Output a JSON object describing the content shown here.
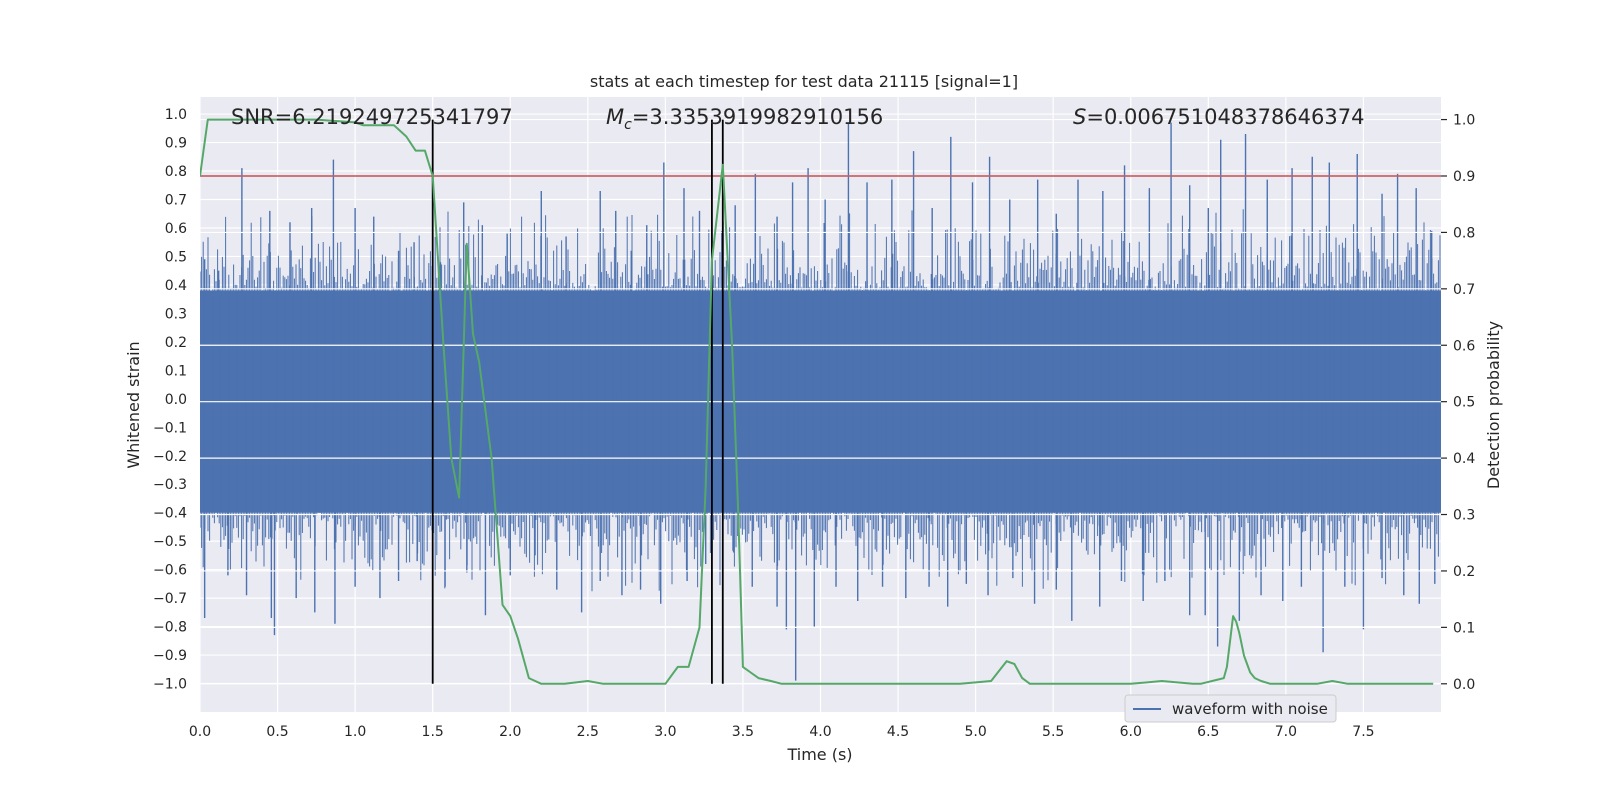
{
  "chart_data": {
    "type": "line",
    "title": "stats at each timestep for test data 21115 [signal=1]",
    "xlabel": "Time (s)",
    "ylabel_left": "Whitened strain",
    "ylabel_right": "Detection probability",
    "xlim": [
      0,
      8
    ],
    "ylim_left": [
      -1.1,
      1.06
    ],
    "ylim_right": [
      -0.05,
      1.04
    ],
    "grid": true,
    "x_ticks": [
      "0.0",
      "0.5",
      "1.0",
      "1.5",
      "2.0",
      "2.5",
      "3.0",
      "3.5",
      "4.0",
      "4.5",
      "5.0",
      "5.5",
      "6.0",
      "6.5",
      "7.0",
      "7.5"
    ],
    "y_left_ticks": [
      "1.0",
      "0.9",
      "0.8",
      "0.7",
      "0.6",
      "0.5",
      "0.4",
      "0.3",
      "0.2",
      "0.1",
      "0.0",
      "-0.1",
      "-0.2",
      "-0.3",
      "-0.4",
      "-0.5",
      "-0.6",
      "-0.7",
      "-0.8",
      "-0.9",
      "-1.0"
    ],
    "y_right_ticks": [
      "1.0",
      "0.9",
      "0.8",
      "0.7",
      "0.6",
      "0.5",
      "0.4",
      "0.3",
      "0.2",
      "0.1",
      "0.0"
    ],
    "annotations": {
      "snr": "SNR=6.219249725341797",
      "mc_symbol": "M",
      "mc_sub": "c",
      "mc_value": "=3.3353919982910156",
      "s_symbol": "S",
      "s_value": "=0.006751048378646374"
    },
    "legend": {
      "label": "waveform with noise",
      "position": "lower-right"
    },
    "threshold": {
      "value": 0.9,
      "axis": "right",
      "color": "#c44e52"
    },
    "vertical_lines": [
      1.5,
      3.3,
      3.37
    ],
    "waveform": {
      "name": "waveform with noise",
      "color": "#4c72b0",
      "core_band": [
        -0.4,
        0.38
      ],
      "spikes_up": [
        [
          0.03,
          0.49
        ],
        [
          0.12,
          0.45
        ],
        [
          0.27,
          0.81
        ],
        [
          0.45,
          0.66
        ],
        [
          0.58,
          0.62
        ],
        [
          0.72,
          0.67
        ],
        [
          0.86,
          0.84
        ],
        [
          1.0,
          0.67
        ],
        [
          1.12,
          0.64
        ],
        [
          1.28,
          0.52
        ],
        [
          1.38,
          0.55
        ],
        [
          1.55,
          0.48
        ],
        [
          1.7,
          0.69
        ],
        [
          1.82,
          0.61
        ],
        [
          1.98,
          0.58
        ],
        [
          2.2,
          0.73
        ],
        [
          2.36,
          0.57
        ],
        [
          2.58,
          0.73
        ],
        [
          2.68,
          0.66
        ],
        [
          2.78,
          0.52
        ],
        [
          2.88,
          0.61
        ],
        [
          2.99,
          0.83
        ],
        [
          3.12,
          0.74
        ],
        [
          3.22,
          0.66
        ],
        [
          3.45,
          0.68
        ],
        [
          3.58,
          0.79
        ],
        [
          3.72,
          0.64
        ],
        [
          3.82,
          0.76
        ],
        [
          3.92,
          0.81
        ],
        [
          4.03,
          0.7
        ],
        [
          4.18,
          0.97
        ],
        [
          4.3,
          0.76
        ],
        [
          4.46,
          0.77
        ],
        [
          4.6,
          0.87
        ],
        [
          4.72,
          0.67
        ],
        [
          4.84,
          0.92
        ],
        [
          4.98,
          0.76
        ],
        [
          5.09,
          0.85
        ],
        [
          5.22,
          0.7
        ],
        [
          5.4,
          0.77
        ],
        [
          5.52,
          0.65
        ],
        [
          5.66,
          0.77
        ],
        [
          5.82,
          0.73
        ],
        [
          5.96,
          0.82
        ],
        [
          6.12,
          0.74
        ],
        [
          6.26,
          0.97
        ],
        [
          6.38,
          0.75
        ],
        [
          6.5,
          0.67
        ],
        [
          6.58,
          0.91
        ],
        [
          6.74,
          0.93
        ],
        [
          6.88,
          0.77
        ],
        [
          7.04,
          0.81
        ],
        [
          7.17,
          0.85
        ],
        [
          7.28,
          0.83
        ],
        [
          7.46,
          0.86
        ],
        [
          7.62,
          0.72
        ],
        [
          7.72,
          0.79
        ],
        [
          7.84,
          0.74
        ],
        [
          7.94,
          0.59
        ]
      ],
      "spikes_down": [
        [
          0.03,
          -0.77
        ],
        [
          0.18,
          -0.62
        ],
        [
          0.3,
          -0.69
        ],
        [
          0.46,
          -0.77
        ],
        [
          0.48,
          -0.83
        ],
        [
          0.62,
          -0.7
        ],
        [
          0.74,
          -0.75
        ],
        [
          0.87,
          -0.79
        ],
        [
          1.0,
          -0.66
        ],
        [
          1.16,
          -0.7
        ],
        [
          1.28,
          -0.64
        ],
        [
          1.4,
          -0.57
        ],
        [
          1.58,
          -0.66
        ],
        [
          1.72,
          -0.61
        ],
        [
          1.84,
          -0.76
        ],
        [
          2.0,
          -0.62
        ],
        [
          2.16,
          -0.55
        ],
        [
          2.3,
          -0.67
        ],
        [
          2.46,
          -0.75
        ],
        [
          2.58,
          -0.64
        ],
        [
          2.72,
          -0.69
        ],
        [
          2.84,
          -0.67
        ],
        [
          2.97,
          -0.72
        ],
        [
          3.14,
          -0.64
        ],
        [
          3.26,
          -0.58
        ],
        [
          3.44,
          -0.54
        ],
        [
          3.56,
          -0.66
        ],
        [
          3.72,
          -0.73
        ],
        [
          3.78,
          -0.81
        ],
        [
          3.84,
          -0.99
        ],
        [
          3.96,
          -0.8
        ],
        [
          4.1,
          -0.66
        ],
        [
          4.24,
          -0.71
        ],
        [
          4.4,
          -0.66
        ],
        [
          4.55,
          -0.7
        ],
        [
          4.7,
          -0.66
        ],
        [
          4.82,
          -0.73
        ],
        [
          4.94,
          -0.65
        ],
        [
          5.08,
          -0.69
        ],
        [
          5.24,
          -0.63
        ],
        [
          5.38,
          -0.72
        ],
        [
          5.52,
          -0.67
        ],
        [
          5.62,
          -0.78
        ],
        [
          5.8,
          -0.73
        ],
        [
          5.94,
          -0.64
        ],
        [
          6.08,
          -0.71
        ],
        [
          6.22,
          -0.64
        ],
        [
          6.38,
          -0.76
        ],
        [
          6.48,
          -0.76
        ],
        [
          6.56,
          -0.87
        ],
        [
          6.7,
          -0.78
        ],
        [
          6.84,
          -0.69
        ],
        [
          6.98,
          -0.71
        ],
        [
          7.1,
          -0.66
        ],
        [
          7.24,
          -0.89
        ],
        [
          7.38,
          -0.66
        ],
        [
          7.5,
          -0.81
        ],
        [
          7.62,
          -0.63
        ],
        [
          7.76,
          -0.69
        ],
        [
          7.86,
          -0.72
        ],
        [
          7.96,
          -0.65
        ]
      ]
    },
    "probability": {
      "name": "detection probability",
      "color": "#55a868",
      "x": [
        0.0,
        0.05,
        0.12,
        0.25,
        0.5,
        0.75,
        1.0,
        1.05,
        1.25,
        1.33,
        1.39,
        1.45,
        1.5,
        1.57,
        1.62,
        1.67,
        1.72,
        1.76,
        1.8,
        1.88,
        1.95,
        2.0,
        2.05,
        2.12,
        2.2,
        2.35,
        2.5,
        2.6,
        2.8,
        2.9,
        3.0,
        3.08,
        3.15,
        3.22,
        3.26,
        3.3,
        3.37,
        3.43,
        3.47,
        3.5,
        3.55,
        3.6,
        3.68,
        3.75,
        4.0,
        4.3,
        4.6,
        4.9,
        5.1,
        5.2,
        5.25,
        5.3,
        5.35,
        5.5,
        6.0,
        6.2,
        6.4,
        6.45,
        6.6,
        6.62,
        6.66,
        6.68,
        6.7,
        6.73,
        6.77,
        6.8,
        6.84,
        6.9,
        7.0,
        7.2,
        7.3,
        7.4,
        7.6,
        7.8,
        7.95
      ],
      "y": [
        0.9,
        1.0,
        1.0,
        1.0,
        1.0,
        1.0,
        0.995,
        0.99,
        0.99,
        0.97,
        0.945,
        0.945,
        0.9,
        0.6,
        0.4,
        0.33,
        0.78,
        0.62,
        0.57,
        0.4,
        0.14,
        0.12,
        0.08,
        0.01,
        0.0,
        0.0,
        0.005,
        0.0,
        0.0,
        0.0,
        0.0,
        0.03,
        0.03,
        0.1,
        0.35,
        0.75,
        0.92,
        0.6,
        0.3,
        0.03,
        0.02,
        0.01,
        0.005,
        0.0,
        0.0,
        0.0,
        0.0,
        0.0,
        0.005,
        0.04,
        0.035,
        0.01,
        0.0,
        0.0,
        0.0,
        0.005,
        0.0,
        0.0,
        0.01,
        0.03,
        0.12,
        0.11,
        0.09,
        0.05,
        0.02,
        0.01,
        0.005,
        0.0,
        0.0,
        0.0,
        0.005,
        0.0,
        0.0,
        0.0,
        0.0
      ]
    }
  }
}
